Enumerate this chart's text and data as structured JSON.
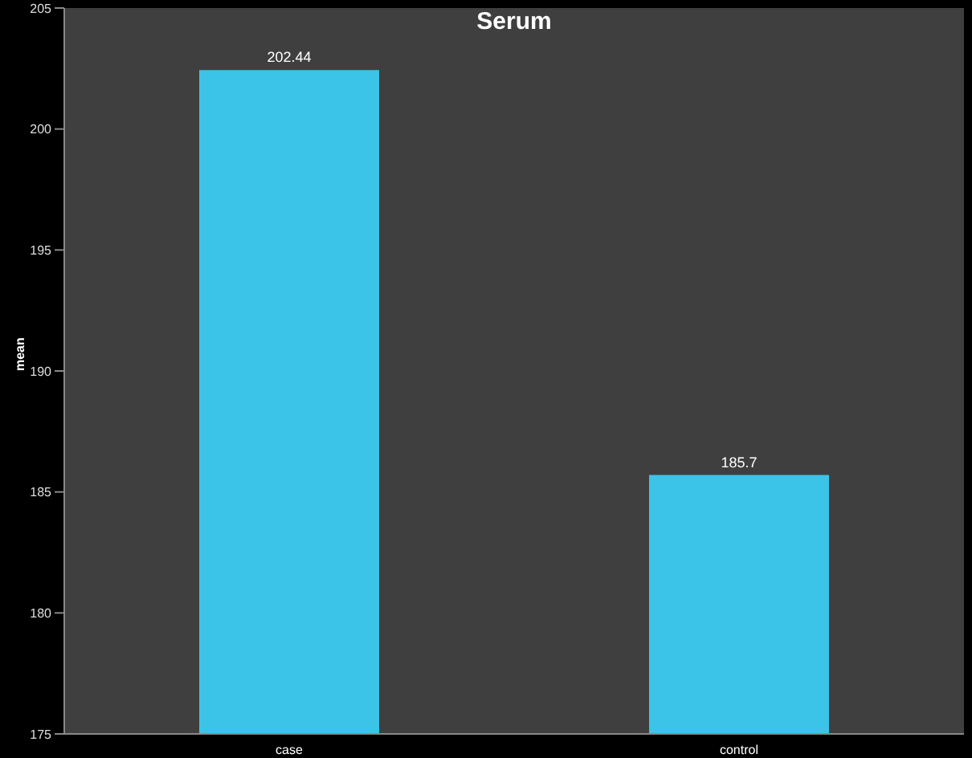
{
  "chart_data": {
    "type": "bar",
    "title": "Serum",
    "ylabel": "mean",
    "categories": [
      "case",
      "control"
    ],
    "values": [
      202.44,
      185.7
    ],
    "color": "#3cc3e8",
    "ylim": [
      175,
      205
    ],
    "yticks": [
      175,
      180,
      185,
      190,
      195,
      200,
      205
    ],
    "data_labels": true
  }
}
